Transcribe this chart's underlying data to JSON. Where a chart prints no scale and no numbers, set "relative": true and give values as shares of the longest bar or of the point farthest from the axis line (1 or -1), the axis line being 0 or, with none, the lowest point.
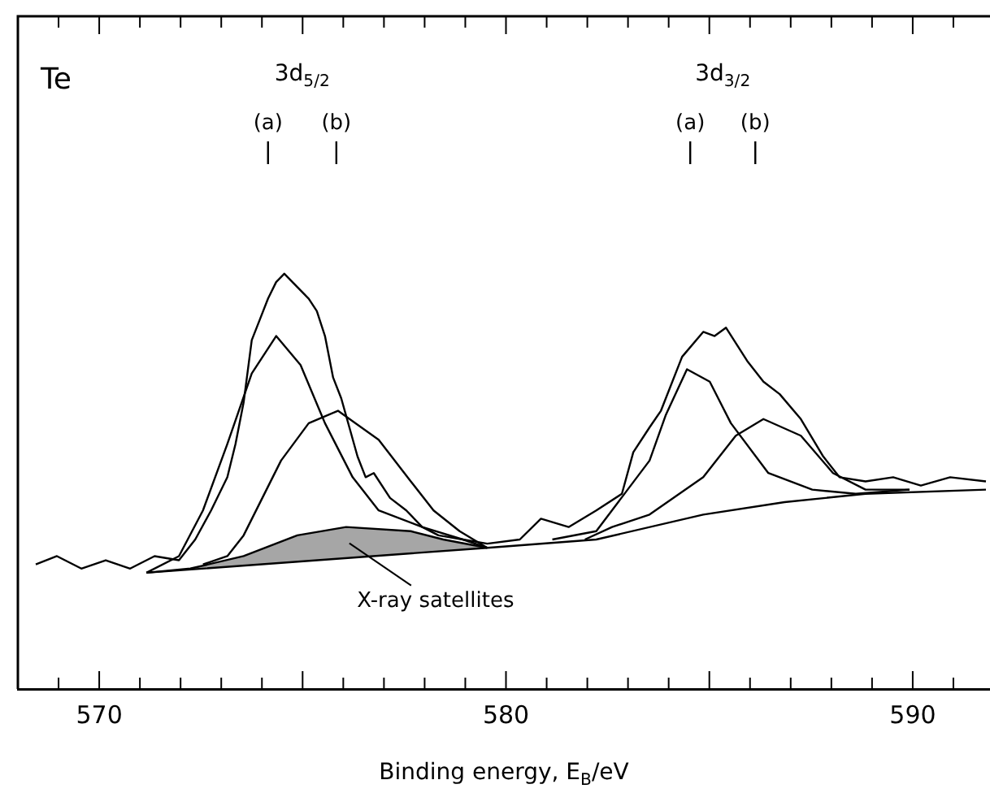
{
  "chart_data": {
    "type": "line",
    "relative": true,
    "xlabel": "Binding energy, E$_{B}$/eV",
    "xlim": [
      568,
      591.9
    ],
    "xticks": [
      {
        "value": 569,
        "label": null
      },
      570,
      {
        "value": 571,
        "label": null
      },
      {
        "value": 572,
        "label": null
      },
      {
        "value": 573,
        "label": null
      },
      {
        "value": 574,
        "label": null
      },
      {
        "value": 575,
        "label": null
      },
      {
        "value": 576,
        "label": null
      },
      {
        "value": 577,
        "label": null
      },
      {
        "value": 578,
        "label": null
      },
      {
        "value": 579,
        "label": null
      },
      580,
      {
        "value": 581,
        "label": null
      },
      {
        "value": 582,
        "label": null
      },
      {
        "value": 583,
        "label": null
      },
      {
        "value": 584,
        "label": null
      },
      {
        "value": 585,
        "label": null
      },
      {
        "value": 586,
        "label": null
      },
      {
        "value": 587,
        "label": null
      },
      {
        "value": 588,
        "label": null
      },
      {
        "value": 589,
        "label": null
      },
      590,
      {
        "value": 591,
        "label": null
      }
    ],
    "annotations": [
      "Te",
      "3d$_{5/2}$",
      "3d$_{3/2}$"
    ],
    "ref_lines": [
      {
        "axis": "x",
        "value": 574.15,
        "label": "(a)"
      },
      {
        "axis": "x",
        "value": 575.83,
        "label": "(b)"
      },
      {
        "axis": "x",
        "value": 584.53,
        "label": "(a)"
      },
      {
        "axis": "x",
        "value": 586.13,
        "label": "(b)"
      }
    ],
    "series": [
      {
        "color": "#000000",
        "x": [
          568.44,
          568.96,
          569.56,
          570.16,
          570.76,
          571.36,
          571.96,
          572.36,
          572.75,
          573.15,
          573.35,
          573.55,
          573.75,
          573.95,
          574.15,
          574.35,
          574.55,
          574.75,
          574.95,
          575.15,
          575.35,
          575.55,
          575.75,
          575.95,
          576.15,
          576.35,
          576.55,
          576.75,
          577.15,
          577.55,
          577.94,
          578.34,
          578.94,
          579.54,
          580.34,
          580.86,
          581.54,
          582.22,
          582.85,
          583.13,
          583.53,
          583.81,
          584.33,
          584.85,
          585.13,
          585.41,
          585.93,
          586.33,
          586.73,
          587.25,
          587.8,
          588.2,
          588.84,
          589.52,
          590.2,
          590.92,
          591.8
        ],
        "values": [
          0.3,
          0.32,
          0.29,
          0.31,
          0.29,
          0.32,
          0.31,
          0.36,
          0.43,
          0.51,
          0.59,
          0.69,
          0.84,
          0.89,
          0.94,
          0.98,
          1.0,
          0.98,
          0.96,
          0.94,
          0.91,
          0.85,
          0.75,
          0.7,
          0.63,
          0.56,
          0.51,
          0.52,
          0.46,
          0.43,
          0.39,
          0.37,
          0.36,
          0.35,
          0.36,
          0.41,
          0.39,
          0.43,
          0.47,
          0.57,
          0.63,
          0.67,
          0.8,
          0.86,
          0.85,
          0.87,
          0.79,
          0.74,
          0.71,
          0.65,
          0.56,
          0.51,
          0.5,
          0.51,
          0.49,
          0.51,
          0.5
        ]
      },
      {
        "color": "#000000",
        "x": [
          571.16,
          571.96,
          572.55,
          573.15,
          573.75,
          574.35,
          574.95,
          575.55,
          576.23,
          576.87,
          577.94,
          578.94,
          579.54
        ],
        "values": [
          0.28,
          0.32,
          0.43,
          0.59,
          0.76,
          0.85,
          0.78,
          0.64,
          0.51,
          0.43,
          0.39,
          0.36,
          0.34
        ]
      },
      {
        "color": "#000000",
        "x": [
          572.55,
          573.15,
          573.55,
          574.47,
          575.15,
          575.87,
          576.87,
          577.66,
          578.22,
          578.86,
          579.54
        ],
        "values": [
          0.3,
          0.32,
          0.37,
          0.55,
          0.64,
          0.67,
          0.6,
          0.5,
          0.43,
          0.38,
          0.34
        ]
      },
      {
        "color": "#000000",
        "x": [
          581.14,
          582.22,
          583.53,
          583.93,
          584.45,
          585.01,
          585.53,
          586.45,
          587.53,
          588.6,
          589.92
        ],
        "values": [
          0.36,
          0.38,
          0.55,
          0.66,
          0.77,
          0.74,
          0.64,
          0.52,
          0.48,
          0.47,
          0.48
        ]
      },
      {
        "color": "#000000",
        "x": [
          581.94,
          582.61,
          583.53,
          584.85,
          585.65,
          586.33,
          587.25,
          588.04,
          588.84,
          589.92
        ],
        "values": [
          0.36,
          0.39,
          0.42,
          0.51,
          0.61,
          0.65,
          0.61,
          0.52,
          0.48,
          0.48
        ]
      },
      {
        "color": "#000000",
        "x": [
          571.16,
          579.54,
          582.22,
          584.85,
          586.85,
          588.84,
          591.8
        ],
        "values": [
          0.28,
          0.34,
          0.36,
          0.42,
          0.45,
          0.47,
          0.48
        ]
      },
      {
        "name": "X-ray satellites",
        "type": "area",
        "color": "#000000",
        "x": [
          571.16,
          572.24,
          573.55,
          574.87,
          576.07,
          577.66,
          578.46,
          579.54
        ],
        "values": [
          0.28,
          0.29,
          0.32,
          0.37,
          0.39,
          0.38,
          0.36,
          0.34
        ]
      }
    ]
  }
}
